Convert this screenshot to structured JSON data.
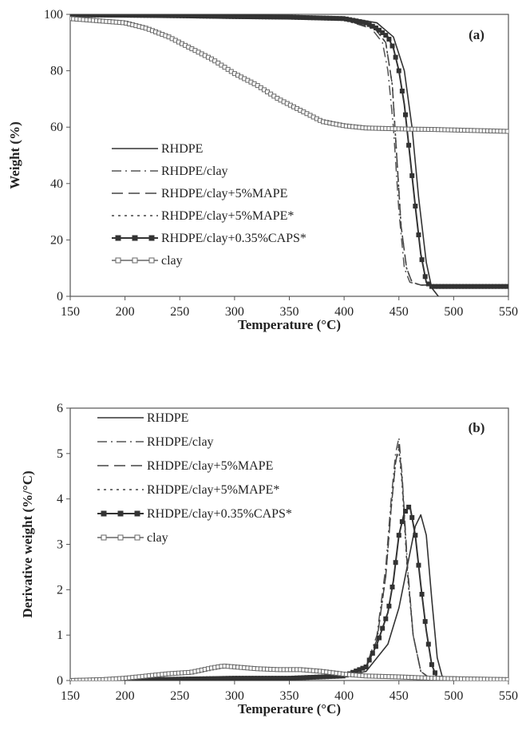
{
  "chart_data": [
    {
      "type": "line",
      "panel_label": "(a)",
      "xlabel": "Temperature (°C)",
      "ylabel": "Weight (%)",
      "xlim": [
        150,
        550
      ],
      "ylim": [
        0,
        100
      ],
      "xticks": [
        "150",
        "200",
        "250",
        "300",
        "350",
        "400",
        "450",
        "500",
        "550"
      ],
      "yticks": [
        "0",
        "20",
        "40",
        "60",
        "80",
        "100"
      ],
      "legend": "left",
      "grid": false,
      "series": [
        {
          "name": "RHDPE",
          "style": "solid",
          "color": "#333333",
          "x": [
            150,
            200,
            300,
            400,
            430,
            445,
            455,
            462,
            468,
            475,
            480,
            486
          ],
          "y": [
            100,
            100,
            100,
            99,
            97,
            92,
            80,
            60,
            35,
            12,
            3,
            0
          ]
        },
        {
          "name": "RHDPE/clay",
          "style": "dashdot",
          "color": "#555555",
          "x": [
            150,
            200,
            300,
            400,
            425,
            435,
            440,
            445,
            450,
            455,
            460,
            470,
            480,
            550
          ],
          "y": [
            100,
            100,
            99.5,
            98,
            95,
            90,
            80,
            60,
            30,
            10,
            5,
            4,
            4,
            4
          ]
        },
        {
          "name": "RHDPE/clay+5%MAPE",
          "style": "dashed",
          "color": "#444444",
          "x": [
            150,
            200,
            300,
            400,
            428,
            438,
            444,
            448,
            452,
            457,
            462,
            470,
            480,
            550
          ],
          "y": [
            100,
            100,
            99.5,
            98,
            95,
            90,
            75,
            50,
            25,
            10,
            5,
            4,
            4,
            4
          ]
        },
        {
          "name": "RHDPE/clay+5%MAPE*",
          "style": "dotted",
          "color": "#444444",
          "x": [
            150,
            200,
            300,
            400,
            428,
            438,
            444,
            448,
            452,
            457,
            462,
            470,
            480,
            550
          ],
          "y": [
            100,
            100,
            99.5,
            98,
            95,
            90,
            75,
            50,
            25,
            10,
            5,
            4,
            4,
            4
          ]
        },
        {
          "name": "RHDPE/clay+0.35%CAPS*",
          "style": "solid-square",
          "color": "#333333",
          "x": [
            150,
            200,
            250,
            300,
            350,
            400,
            420,
            430,
            440,
            445,
            450,
            455,
            460,
            465,
            470,
            475,
            480,
            490,
            500,
            520,
            550
          ],
          "y": [
            99.8,
            99.7,
            99.5,
            99.2,
            99,
            98.5,
            97,
            95,
            92,
            88,
            80,
            68,
            50,
            32,
            15,
            5,
            3.5,
            3.5,
            3.5,
            3.5,
            3.5
          ]
        },
        {
          "name": "clay",
          "style": "solid-opensquare",
          "color": "#666666",
          "x": [
            150,
            200,
            220,
            240,
            260,
            280,
            300,
            320,
            340,
            360,
            380,
            400,
            420,
            440,
            460,
            480,
            500,
            520,
            550
          ],
          "y": [
            98.5,
            97,
            95,
            92,
            88,
            84,
            79,
            75,
            70,
            66,
            62,
            60.5,
            59.7,
            59.5,
            59.3,
            59.2,
            59,
            58.8,
            58.5
          ]
        }
      ]
    },
    {
      "type": "line",
      "panel_label": "(b)",
      "xlabel": "Temperature (°C)",
      "ylabel": "Derivative weight (%/°C)",
      "xlim": [
        150,
        550
      ],
      "ylim": [
        0,
        6
      ],
      "xticks": [
        "150",
        "200",
        "250",
        "300",
        "350",
        "400",
        "450",
        "500",
        "550"
      ],
      "yticks": [
        "0",
        "1",
        "2",
        "3",
        "4",
        "5",
        "6"
      ],
      "legend": "top-left",
      "grid": false,
      "series": [
        {
          "name": "RHDPE",
          "style": "solid",
          "color": "#333333",
          "x": [
            150,
            250,
            350,
            400,
            420,
            440,
            450,
            460,
            465,
            470,
            475,
            480,
            485,
            490,
            550
          ],
          "y": [
            0,
            0.02,
            0.05,
            0.1,
            0.2,
            0.8,
            1.6,
            2.8,
            3.4,
            3.65,
            3.2,
            1.8,
            0.5,
            0.05,
            0
          ]
        },
        {
          "name": "RHDPE/clay",
          "style": "dashdot",
          "color": "#555555",
          "x": [
            150,
            250,
            350,
            400,
            420,
            430,
            438,
            443,
            447,
            450,
            453,
            458,
            463,
            470,
            480,
            550
          ],
          "y": [
            0,
            0.05,
            0.05,
            0.1,
            0.3,
            1,
            2.5,
            4,
            5,
            5.35,
            4.5,
            2.5,
            1,
            0.2,
            0.02,
            0
          ]
        },
        {
          "name": "RHDPE/clay+5%MAPE",
          "style": "dashed",
          "color": "#444444",
          "x": [
            150,
            250,
            350,
            400,
            420,
            430,
            438,
            443,
            447,
            450,
            453,
            458,
            463,
            470,
            480,
            550
          ],
          "y": [
            0,
            0.05,
            0.05,
            0.1,
            0.3,
            0.9,
            2.3,
            3.8,
            4.8,
            5.2,
            4.4,
            2.4,
            1,
            0.2,
            0.02,
            0
          ]
        },
        {
          "name": "RHDPE/clay+5%MAPE*",
          "style": "dotted",
          "color": "#444444",
          "x": [
            150,
            250,
            350,
            400,
            420,
            430,
            438,
            443,
            447,
            450,
            453,
            458,
            463,
            470,
            480,
            550
          ],
          "y": [
            0,
            0.05,
            0.05,
            0.1,
            0.3,
            0.9,
            2.3,
            3.8,
            4.8,
            5.1,
            4.3,
            2.3,
            1,
            0.2,
            0.02,
            0
          ]
        },
        {
          "name": "RHDPE/clay+0.35%CAPS*",
          "style": "solid-square",
          "color": "#333333",
          "x": [
            150,
            200,
            250,
            300,
            350,
            400,
            420,
            430,
            440,
            445,
            450,
            455,
            460,
            465,
            470,
            475,
            480,
            485,
            550
          ],
          "y": [
            0,
            0.01,
            0.03,
            0.05,
            0.05,
            0.1,
            0.3,
            0.8,
            1.5,
            2.2,
            3.2,
            3.7,
            3.85,
            3.2,
            2.1,
            1.1,
            0.35,
            0.05,
            0
          ]
        },
        {
          "name": "clay",
          "style": "solid-opensquare",
          "color": "#666666",
          "x": [
            150,
            180,
            200,
            220,
            240,
            260,
            280,
            290,
            300,
            320,
            340,
            360,
            380,
            400,
            420,
            450,
            480,
            500,
            550
          ],
          "y": [
            0,
            0.02,
            0.05,
            0.1,
            0.15,
            0.18,
            0.28,
            0.32,
            0.3,
            0.26,
            0.24,
            0.24,
            0.2,
            0.14,
            0.1,
            0.08,
            0.05,
            0.04,
            0.02
          ]
        }
      ]
    }
  ]
}
